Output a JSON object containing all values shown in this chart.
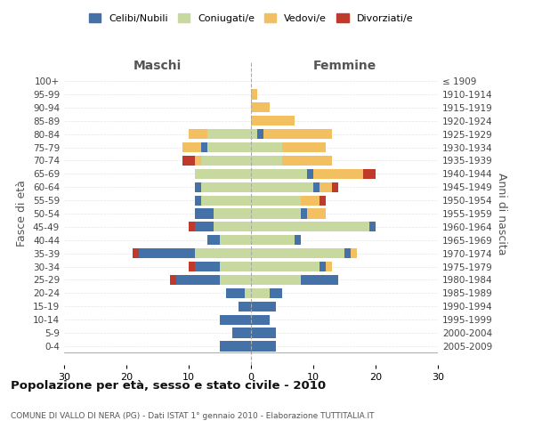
{
  "age_groups": [
    "0-4",
    "5-9",
    "10-14",
    "15-19",
    "20-24",
    "25-29",
    "30-34",
    "35-39",
    "40-44",
    "45-49",
    "50-54",
    "55-59",
    "60-64",
    "65-69",
    "70-74",
    "75-79",
    "80-84",
    "85-89",
    "90-94",
    "95-99",
    "100+"
  ],
  "birth_years": [
    "2005-2009",
    "2000-2004",
    "1995-1999",
    "1990-1994",
    "1985-1989",
    "1980-1984",
    "1975-1979",
    "1970-1974",
    "1965-1969",
    "1960-1964",
    "1955-1959",
    "1950-1954",
    "1945-1949",
    "1940-1944",
    "1935-1939",
    "1930-1934",
    "1925-1929",
    "1920-1924",
    "1915-1919",
    "1910-1914",
    "≤ 1909"
  ],
  "maschi": {
    "celibi": [
      5,
      3,
      5,
      2,
      3,
      7,
      4,
      9,
      2,
      3,
      3,
      1,
      1,
      0,
      0,
      1,
      0,
      0,
      0,
      0,
      0
    ],
    "coniugati": [
      0,
      0,
      0,
      0,
      1,
      5,
      5,
      9,
      5,
      6,
      6,
      8,
      8,
      9,
      8,
      7,
      7,
      0,
      0,
      0,
      0
    ],
    "vedovi": [
      0,
      0,
      0,
      0,
      0,
      0,
      0,
      0,
      0,
      0,
      0,
      0,
      0,
      0,
      1,
      3,
      3,
      0,
      0,
      0,
      0
    ],
    "divorziati": [
      0,
      0,
      0,
      0,
      0,
      1,
      1,
      1,
      0,
      1,
      0,
      0,
      0,
      0,
      2,
      0,
      0,
      0,
      0,
      0,
      0
    ]
  },
  "femmine": {
    "nubili": [
      4,
      4,
      3,
      4,
      2,
      6,
      1,
      1,
      1,
      1,
      1,
      0,
      1,
      1,
      0,
      0,
      1,
      0,
      0,
      0,
      0
    ],
    "coniugate": [
      0,
      0,
      0,
      0,
      3,
      8,
      11,
      15,
      7,
      19,
      8,
      8,
      10,
      9,
      5,
      5,
      1,
      0,
      0,
      0,
      0
    ],
    "vedove": [
      0,
      0,
      0,
      0,
      0,
      0,
      1,
      1,
      0,
      0,
      3,
      3,
      2,
      8,
      8,
      7,
      11,
      7,
      3,
      1,
      0
    ],
    "divorziate": [
      0,
      0,
      0,
      0,
      0,
      0,
      0,
      0,
      0,
      0,
      0,
      1,
      1,
      2,
      0,
      0,
      0,
      0,
      0,
      0,
      0
    ]
  },
  "colors": {
    "celibi": "#4472a8",
    "coniugati": "#c8d9a0",
    "vedovi": "#f2c060",
    "divorziati": "#c0392b"
  },
  "xlim": 30,
  "title": "Popolazione per età, sesso e stato civile - 2010",
  "subtitle": "COMUNE DI VALLO DI NERA (PG) - Dati ISTAT 1° gennaio 2010 - Elaborazione TUTTITALIA.IT",
  "xlabel_left": "Maschi",
  "xlabel_right": "Femmine",
  "ylabel_left": "Fasce di età",
  "ylabel_right": "Anni di nascita",
  "legend_labels": [
    "Celibi/Nubili",
    "Coniugati/e",
    "Vedovi/e",
    "Divorziati/e"
  ]
}
